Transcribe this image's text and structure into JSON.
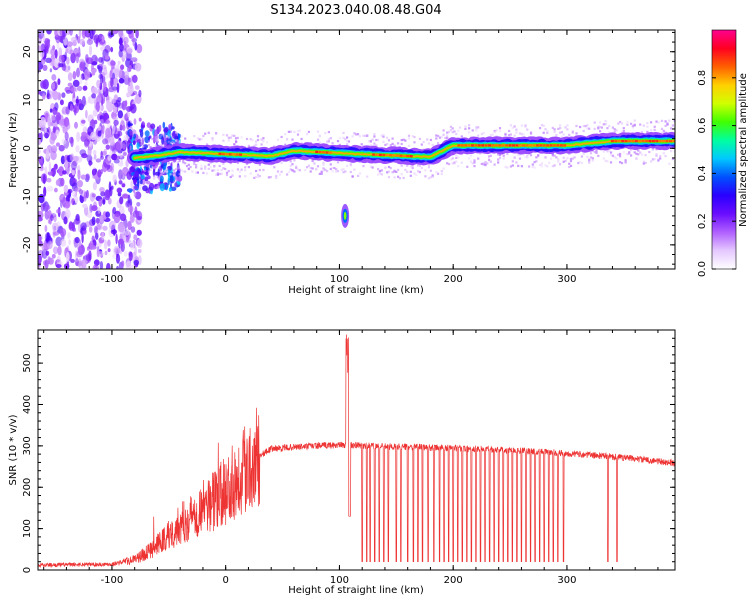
{
  "figure": {
    "title": "S134.2023.040.08.48.G04"
  },
  "chart_data": [
    {
      "type": "heatmap",
      "description": "spectrogram",
      "xlabel": "Height of straight line (km)",
      "ylabel": "Frequency (Hz)",
      "xlim": [
        -165,
        395
      ],
      "ylim": [
        -25,
        24.5
      ],
      "xticks": [
        -100,
        0,
        100,
        200,
        300
      ],
      "yticks": [
        -20,
        -10,
        0,
        10,
        20
      ],
      "colorbar": {
        "label": "Normalized spectral amplitude",
        "range": [
          0,
          1
        ],
        "ticks": [
          0.0,
          0.2,
          0.4,
          0.6,
          0.8
        ],
        "tick_labels": [
          "0.0",
          "0.2",
          "0.4",
          "0.6",
          "0.8"
        ],
        "colormap": [
          "#ffffff",
          "#e5c8ff",
          "#b060ff",
          "#6a0dff",
          "#2a00ff",
          "#0050ff",
          "#00c8ff",
          "#00ffa0",
          "#40ff00",
          "#d0ff00",
          "#ffd000",
          "#ff6000",
          "#ff0020",
          "#ff0090"
        ]
      },
      "ridge_line_hz": [
        {
          "x": -80,
          "y": -2
        },
        {
          "x": -60,
          "y": -1.5
        },
        {
          "x": -40,
          "y": -0.8
        },
        {
          "x": 0,
          "y": -1.2
        },
        {
          "x": 40,
          "y": -1.6
        },
        {
          "x": 60,
          "y": -0.5
        },
        {
          "x": 100,
          "y": -1.0
        },
        {
          "x": 180,
          "y": -1.8
        },
        {
          "x": 200,
          "y": 0.6
        },
        {
          "x": 300,
          "y": 0.6
        },
        {
          "x": 340,
          "y": 1.5
        },
        {
          "x": 395,
          "y": 1.5
        }
      ],
      "features": [
        {
          "x": 105,
          "y": -14,
          "note": "isolated burst"
        }
      ]
    },
    {
      "type": "line",
      "xlabel": "Height of straight line (km)",
      "ylabel": "SNR (10 * v/v)",
      "xlim": [
        -165,
        395
      ],
      "ylim": [
        0,
        580
      ],
      "xticks": [
        -100,
        0,
        100,
        200,
        300
      ],
      "yticks": [
        0,
        100,
        200,
        300,
        400,
        500
      ],
      "color": "#ee3333",
      "envelope": [
        {
          "x": -165,
          "y": 12
        },
        {
          "x": -100,
          "y": 14
        },
        {
          "x": -80,
          "y": 25
        },
        {
          "x": -60,
          "y": 60
        },
        {
          "x": -40,
          "y": 110
        },
        {
          "x": -20,
          "y": 150
        },
        {
          "x": 0,
          "y": 190
        },
        {
          "x": 20,
          "y": 260
        },
        {
          "x": 40,
          "y": 293
        },
        {
          "x": 60,
          "y": 297
        },
        {
          "x": 80,
          "y": 300
        },
        {
          "x": 100,
          "y": 302
        },
        {
          "x": 150,
          "y": 298
        },
        {
          "x": 200,
          "y": 295
        },
        {
          "x": 250,
          "y": 290
        },
        {
          "x": 300,
          "y": 282
        },
        {
          "x": 350,
          "y": 272
        },
        {
          "x": 395,
          "y": 258
        }
      ],
      "spike": {
        "x": 107,
        "y": 580,
        "low": 130
      },
      "dropout_level": 20,
      "dropouts_x": [
        120,
        124,
        127,
        131,
        135,
        139,
        143,
        150,
        154,
        160,
        165,
        169,
        173,
        178,
        183,
        188,
        192,
        196,
        200,
        204,
        208,
        212,
        216,
        220,
        224,
        228,
        232,
        236,
        240,
        244,
        248,
        252,
        256,
        260,
        264,
        268,
        272,
        276,
        280,
        284,
        288,
        292,
        297,
        336,
        344
      ]
    }
  ]
}
